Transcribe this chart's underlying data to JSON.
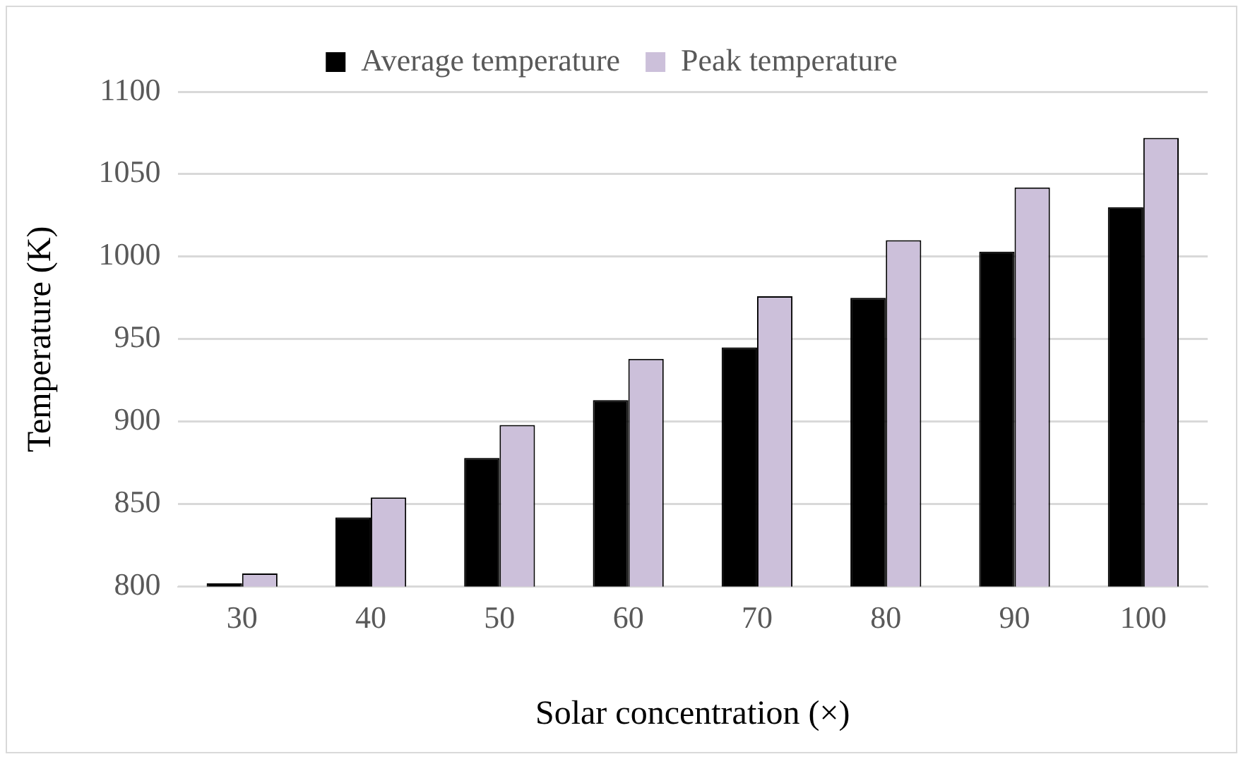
{
  "chart_data": {
    "type": "bar",
    "xlabel": "Solar concentration (×)",
    "ylabel": "Temperature (K)",
    "categories": [
      "30",
      "40",
      "50",
      "60",
      "70",
      "80",
      "90",
      "100"
    ],
    "series": [
      {
        "name": "Average temperature",
        "color": "#000000",
        "values": [
          802,
          842,
          878,
          913,
          945,
          975,
          1003,
          1030
        ]
      },
      {
        "name": "Peak temperature",
        "color": "#ccc0da",
        "values": [
          808,
          854,
          898,
          938,
          976,
          1010,
          1042,
          1072
        ]
      }
    ],
    "ylim": [
      800,
      1100
    ],
    "yticks": [
      800,
      850,
      900,
      950,
      1000,
      1050,
      1100
    ],
    "grid": "y",
    "legend": "top"
  }
}
